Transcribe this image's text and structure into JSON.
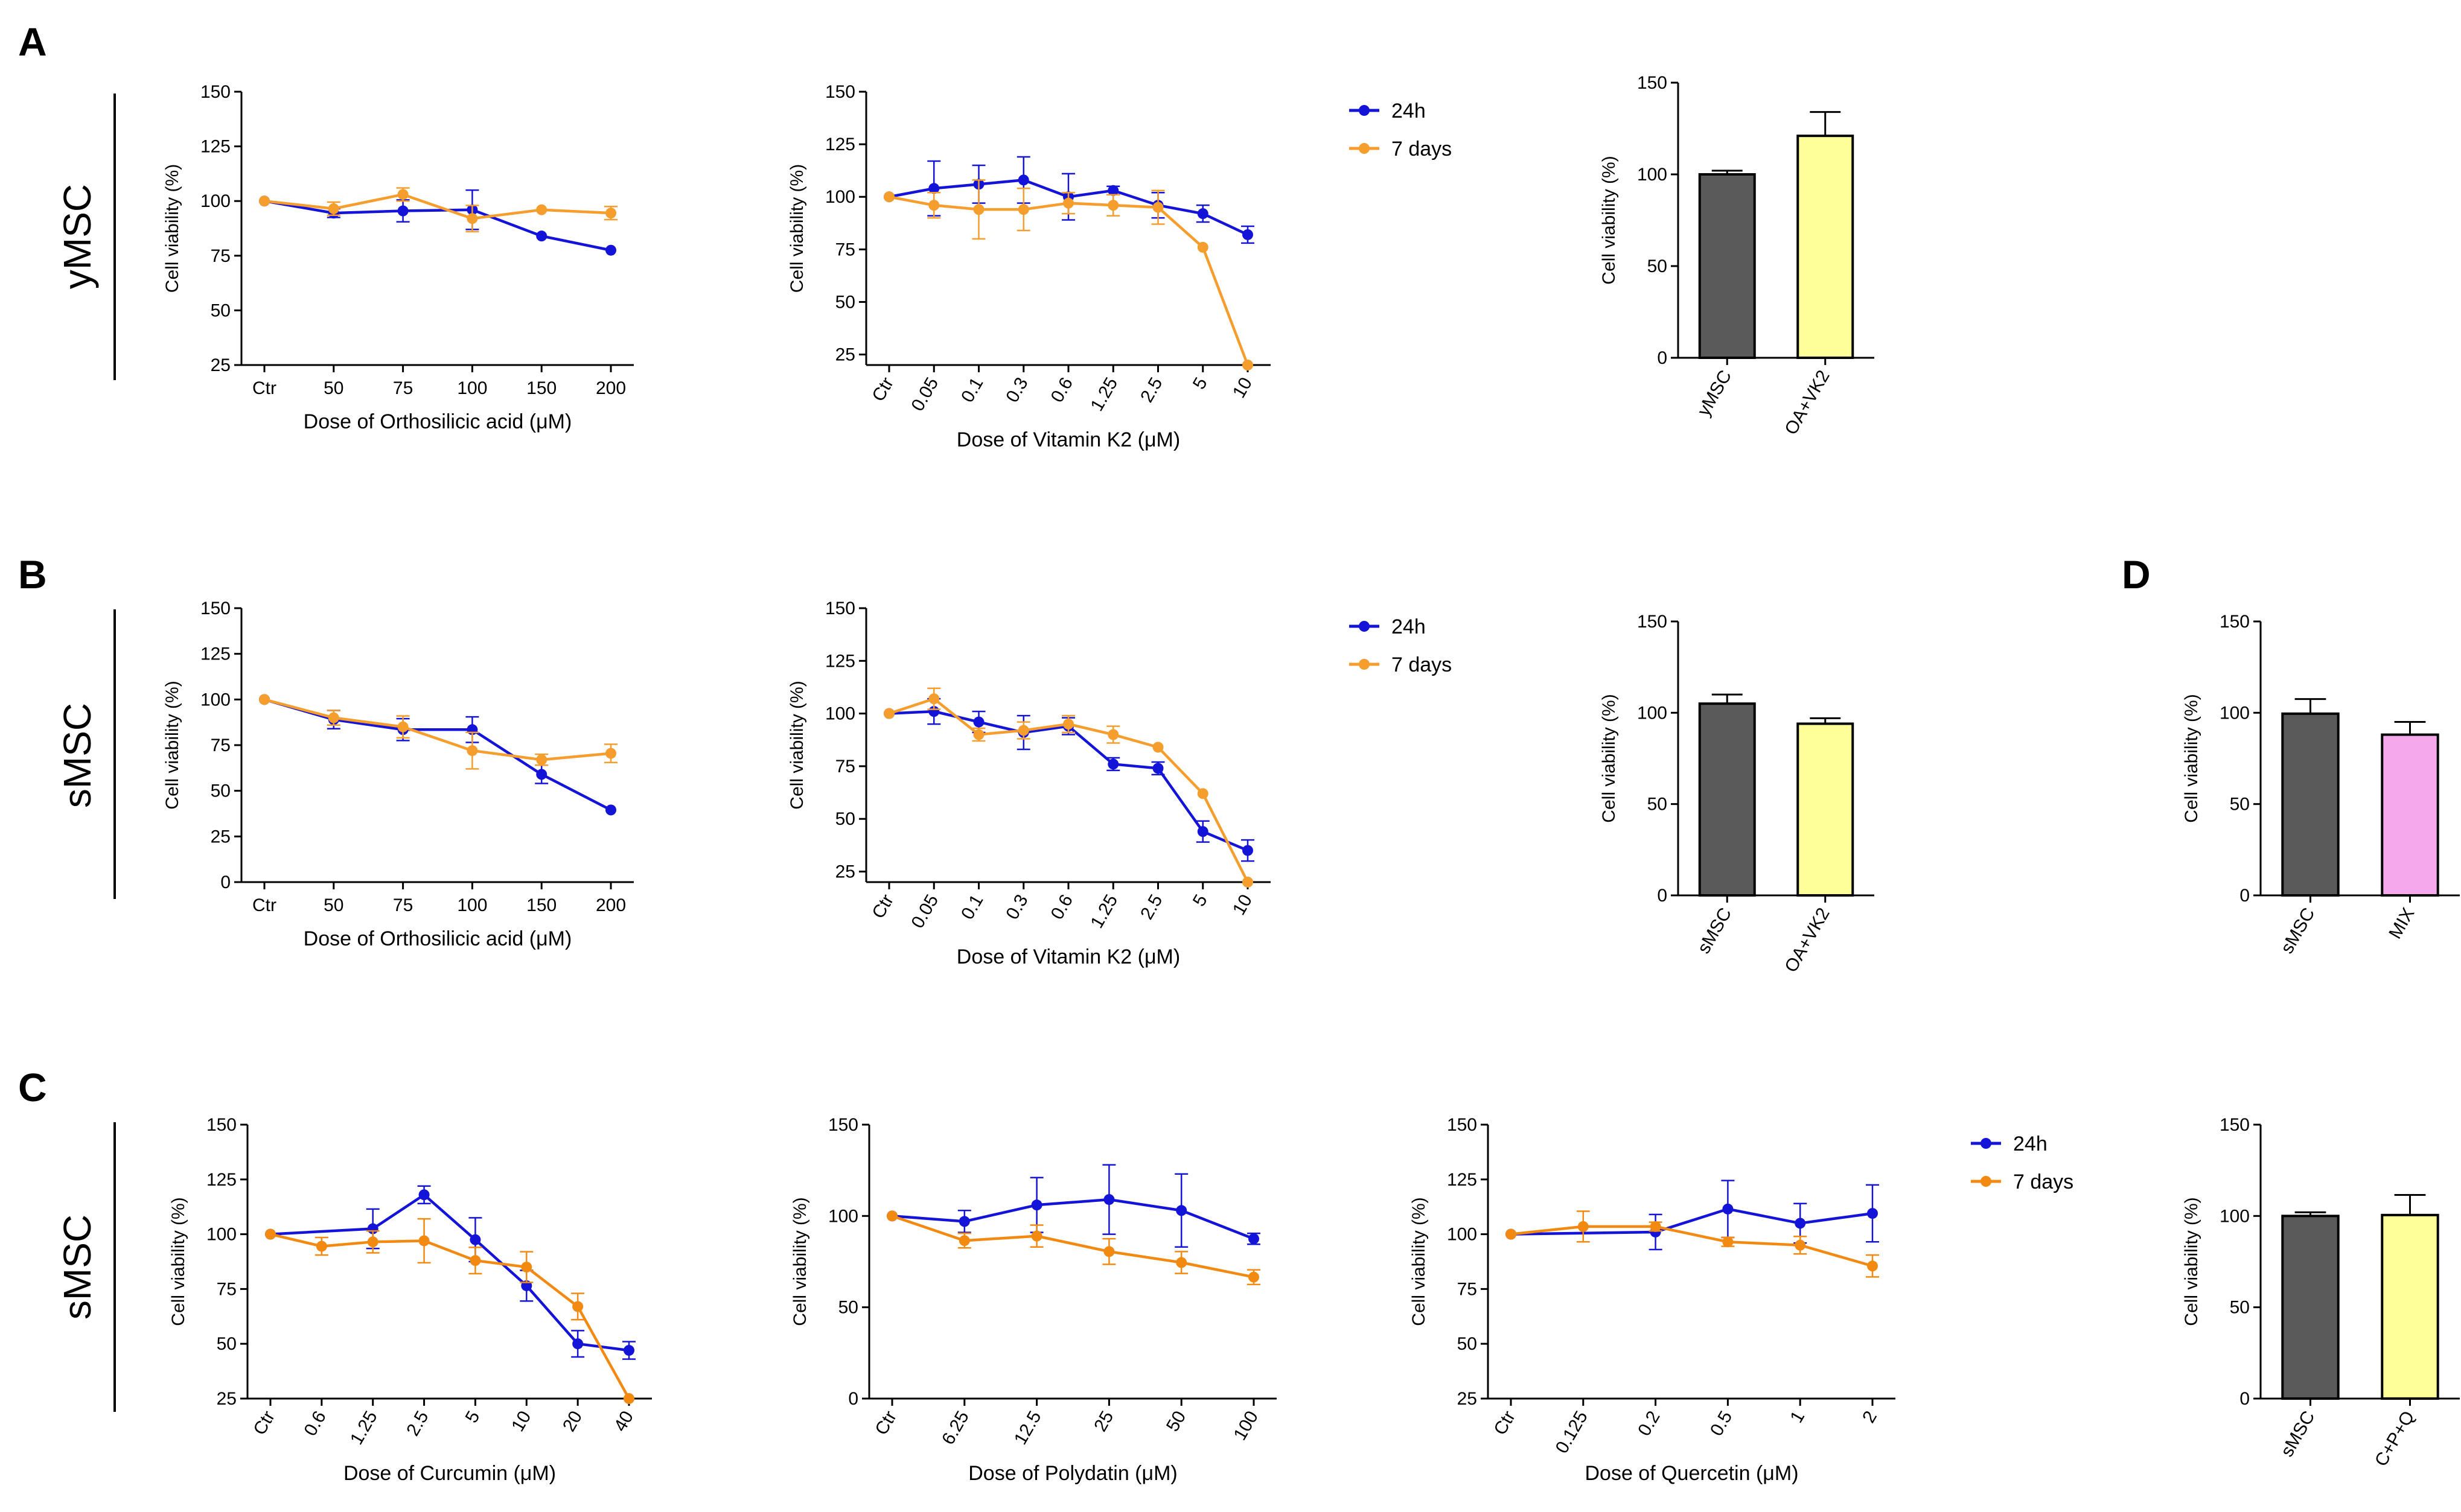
{
  "colors": {
    "h24": "#1414d8",
    "d7": "#f59d2d",
    "d7_row_c": "#f28a12",
    "bar_dark": "#5a5a5a",
    "bar_yellow": "#ffff99",
    "bar_pink": "#f6a8ec",
    "axis": "#000000"
  },
  "panel_letters": {
    "A": "A",
    "B": "B",
    "C": "C",
    "D": "D"
  },
  "row_labels": {
    "a": "yMSC",
    "b": "sMSC",
    "c": "sMSC"
  },
  "legend": {
    "h24": "24h",
    "d7": "7 days"
  },
  "chart_data": [
    {
      "id": "a_oa",
      "type": "line",
      "categories": [
        "Ctr",
        "50",
        "75",
        "100",
        "150",
        "200"
      ],
      "series": [
        {
          "name": "24h",
          "color_key": "h24",
          "values": [
            100,
            94.5,
            95.5,
            96,
            84,
            77.5
          ],
          "errors": [
            1,
            2,
            5,
            9,
            1,
            1
          ]
        },
        {
          "name": "7 days",
          "color_key": "d7",
          "values": [
            100,
            96.5,
            103,
            92,
            96,
            94.5
          ],
          "errors": [
            1,
            3,
            3,
            6,
            1,
            3
          ]
        }
      ],
      "title": "",
      "xlabel": "Dose of Orthosilicic acid (μM)",
      "ylabel": "Cell viability (%)",
      "ylim": [
        25,
        150
      ],
      "yticks": [
        25,
        50,
        75,
        100,
        125,
        150
      ],
      "xtick_rotate": false
    },
    {
      "id": "a_vk2",
      "type": "line",
      "categories": [
        "Ctr",
        "0.05",
        "0.1",
        "0.3",
        "0.6",
        "1.25",
        "2.5",
        "5",
        "10"
      ],
      "series": [
        {
          "name": "24h",
          "color_key": "h24",
          "values": [
            100,
            104,
            106,
            108,
            100,
            103,
            96,
            92,
            82
          ],
          "errors": [
            1,
            13,
            9,
            11,
            11,
            2,
            6,
            4,
            4
          ]
        },
        {
          "name": "7 days",
          "color_key": "d7",
          "values": [
            100,
            96,
            94,
            94,
            97,
            96,
            95,
            76,
            20
          ],
          "errors": [
            1,
            6,
            14,
            10,
            5,
            5,
            8,
            1,
            1
          ]
        }
      ],
      "title": "",
      "xlabel": "Dose of Vitamin K2 (μM)",
      "ylabel": "Cell viability (%)",
      "ylim": [
        20,
        150
      ],
      "yticks": [
        25,
        50,
        75,
        100,
        125,
        150
      ],
      "xtick_rotate": true
    },
    {
      "id": "a_bar",
      "type": "bar",
      "categories": [
        "yMSC",
        "OA+VK2"
      ],
      "values": [
        100,
        121
      ],
      "errors": [
        2,
        13
      ],
      "bar_color_keys": [
        "bar_dark",
        "bar_yellow"
      ],
      "title": "",
      "xlabel": "",
      "ylabel": "Cell viability (%)",
      "ylim": [
        0,
        150
      ],
      "yticks": [
        0,
        50,
        100,
        150
      ]
    },
    {
      "id": "b_oa",
      "type": "line",
      "categories": [
        "Ctr",
        "50",
        "75",
        "100",
        "150",
        "200"
      ],
      "series": [
        {
          "name": "24h",
          "color_key": "h24",
          "values": [
            100,
            89,
            83.5,
            83.5,
            59,
            39.5
          ],
          "errors": [
            1,
            5,
            6,
            7,
            5,
            1
          ]
        },
        {
          "name": "7 days",
          "color_key": "d7",
          "values": [
            100,
            90,
            85,
            72,
            67,
            70.5
          ],
          "errors": [
            1,
            4,
            6,
            10,
            3,
            5
          ]
        }
      ],
      "title": "",
      "xlabel": "Dose of Orthosilicic acid (μM)",
      "ylabel": "Cell viability (%)",
      "ylim": [
        0,
        150
      ],
      "yticks": [
        0,
        25,
        50,
        75,
        100,
        125,
        150
      ],
      "xtick_rotate": false
    },
    {
      "id": "b_vk2",
      "type": "line",
      "categories": [
        "Ctr",
        "0.05",
        "0.1",
        "0.3",
        "0.6",
        "1.25",
        "2.5",
        "5",
        "10"
      ],
      "series": [
        {
          "name": "24h",
          "color_key": "h24",
          "values": [
            100,
            101,
            96,
            91,
            94,
            76,
            74,
            44,
            35
          ],
          "errors": [
            1,
            6,
            5,
            8,
            4,
            3,
            3,
            5,
            5
          ]
        },
        {
          "name": "7 days",
          "color_key": "d7",
          "values": [
            100,
            107,
            90,
            92,
            95,
            90,
            84,
            62,
            20
          ],
          "errors": [
            1,
            5,
            3,
            4,
            4,
            4,
            1,
            1,
            1
          ]
        }
      ],
      "title": "",
      "xlabel": "Dose of Vitamin K2 (μM)",
      "ylabel": "Cell viability (%)",
      "ylim": [
        20,
        150
      ],
      "yticks": [
        25,
        50,
        75,
        100,
        125,
        150
      ],
      "xtick_rotate": true
    },
    {
      "id": "b_bar",
      "type": "bar",
      "categories": [
        "sMSC",
        "OA+VK2"
      ],
      "values": [
        105,
        94
      ],
      "errors": [
        5,
        3
      ],
      "bar_color_keys": [
        "bar_dark",
        "bar_yellow"
      ],
      "title": "",
      "xlabel": "",
      "ylabel": "Cell viability (%)",
      "ylim": [
        0,
        150
      ],
      "yticks": [
        0,
        50,
        100,
        150
      ]
    },
    {
      "id": "d1_bar",
      "type": "bar",
      "categories": [
        "sMSC",
        "MIX"
      ],
      "values": [
        99.5,
        88
      ],
      "errors": [
        8,
        7
      ],
      "bar_color_keys": [
        "bar_dark",
        "bar_pink"
      ],
      "title": "",
      "xlabel": "",
      "ylabel": "Cell viability (%)",
      "ylim": [
        0,
        150
      ],
      "yticks": [
        0,
        50,
        100,
        150
      ]
    },
    {
      "id": "c_cur",
      "type": "line",
      "categories": [
        "Ctr",
        "0.6",
        "1.25",
        "2.5",
        "5",
        "10",
        "20",
        "40"
      ],
      "series": [
        {
          "name": "24h",
          "color_key": "h24",
          "values": [
            100,
            null,
            102.5,
            118,
            97.5,
            76.5,
            50,
            47
          ],
          "errors": [
            1,
            null,
            9,
            4,
            10,
            7,
            6,
            4
          ]
        },
        {
          "name": "7 days",
          "color_key": "d7_row_c",
          "values": [
            100,
            94.5,
            96.5,
            97,
            88,
            85,
            67,
            25
          ],
          "errors": [
            1,
            4,
            5,
            10,
            6,
            7,
            6,
            1
          ]
        }
      ],
      "title": "",
      "xlabel": "Dose of Curcumin (μM)",
      "ylabel": "Cell viability (%)",
      "ylim": [
        25,
        150
      ],
      "yticks": [
        25,
        50,
        75,
        100,
        125,
        150
      ],
      "xtick_rotate": true
    },
    {
      "id": "c_pol",
      "type": "line",
      "categories": [
        "Ctr",
        "6.25",
        "12.5",
        "25",
        "50",
        "100"
      ],
      "series": [
        {
          "name": "24h",
          "color_key": "h24",
          "values": [
            100,
            97,
            106,
            109,
            103,
            87.5
          ],
          "errors": [
            1,
            6,
            15,
            19,
            20,
            3
          ]
        },
        {
          "name": "7 days",
          "color_key": "d7_row_c",
          "values": [
            100,
            86.5,
            89,
            80.5,
            74.5,
            66.5
          ],
          "errors": [
            1,
            4,
            6,
            7,
            6,
            4
          ]
        }
      ],
      "title": "",
      "xlabel": "Dose of Polydatin (μM)",
      "ylabel": "Cell viability (%)",
      "ylim": [
        0,
        150
      ],
      "yticks": [
        0,
        50,
        100,
        150
      ],
      "xtick_rotate": true
    },
    {
      "id": "c_que",
      "type": "line",
      "categories": [
        "Ctr",
        "0.125",
        "0.2",
        "0.5",
        "1",
        "2"
      ],
      "series": [
        {
          "name": "24h",
          "color_key": "h24",
          "values": [
            100,
            null,
            101,
            111.5,
            105,
            109.5
          ],
          "errors": [
            1,
            null,
            8,
            13,
            9,
            13
          ]
        },
        {
          "name": "7 days",
          "color_key": "d7_row_c",
          "values": [
            100,
            103.5,
            103.5,
            96.5,
            95,
            85.5
          ],
          "errors": [
            1,
            7,
            2,
            2,
            4,
            5
          ]
        }
      ],
      "title": "",
      "xlabel": "Dose of Quercetin (μM)",
      "ylabel": "Cell viability (%)",
      "ylim": [
        25,
        150
      ],
      "yticks": [
        25,
        50,
        75,
        100,
        125,
        150
      ],
      "xtick_rotate": true
    },
    {
      "id": "d2_bar",
      "type": "bar",
      "categories": [
        "sMSC",
        "C+P+Q"
      ],
      "values": [
        100,
        100.5
      ],
      "errors": [
        2,
        11
      ],
      "bar_color_keys": [
        "bar_dark",
        "bar_yellow"
      ],
      "title": "",
      "xlabel": "",
      "ylabel": "Cell viability (%)",
      "ylim": [
        0,
        150
      ],
      "yticks": [
        0,
        50,
        100,
        150
      ]
    }
  ]
}
